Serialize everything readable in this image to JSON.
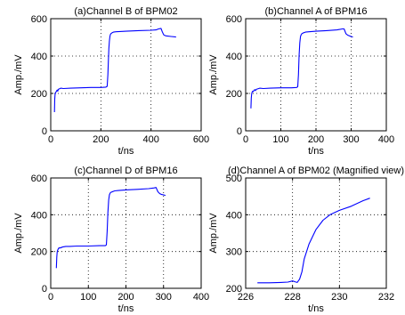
{
  "chart_data": [
    {
      "type": "line",
      "title": "(a)Channel B of BPM02",
      "xlabel": "t/ns",
      "ylabel": "Amp./mV",
      "xlim": [
        0,
        600
      ],
      "ylim": [
        0,
        600
      ],
      "xticks": [
        0,
        200,
        400,
        600
      ],
      "yticks": [
        0,
        200,
        400,
        600
      ],
      "grid": true,
      "series": [
        {
          "color": "#0000ff",
          "x": [
            15,
            16,
            17,
            18,
            20,
            22,
            24,
            26,
            28,
            30,
            35,
            40,
            50,
            80,
            120,
            160,
            200,
            220,
            225,
            228,
            230,
            232,
            234,
            236,
            238,
            240,
            245,
            250,
            260,
            300,
            350,
            400,
            420,
            430,
            440,
            445,
            450,
            455,
            460,
            480,
            500
          ],
          "y": [
            100,
            170,
            190,
            200,
            205,
            210,
            215,
            218,
            212,
            222,
            225,
            228,
            226,
            228,
            230,
            232,
            232,
            234,
            238,
            300,
            380,
            440,
            480,
            505,
            515,
            520,
            525,
            528,
            530,
            533,
            536,
            538,
            540,
            545,
            548,
            530,
            515,
            510,
            508,
            505,
            502
          ]
        }
      ]
    },
    {
      "type": "line",
      "title": "(b)Channel A of BPM16",
      "xlabel": "t/ns",
      "ylabel": "Amp./mV",
      "xlim": [
        0,
        400
      ],
      "ylim": [
        0,
        600
      ],
      "xticks": [
        0,
        100,
        200,
        300,
        400
      ],
      "yticks": [
        0,
        200,
        400,
        600
      ],
      "grid": true,
      "series": [
        {
          "color": "#0000ff",
          "x": [
            15,
            16,
            17,
            18,
            20,
            22,
            24,
            26,
            28,
            30,
            40,
            50,
            70,
            100,
            130,
            145,
            148,
            150,
            152,
            154,
            156,
            158,
            160,
            165,
            170,
            180,
            200,
            230,
            260,
            275,
            280,
            285,
            290,
            295,
            300,
            305
          ],
          "y": [
            120,
            175,
            195,
            205,
            212,
            210,
            218,
            220,
            215,
            222,
            228,
            226,
            228,
            230,
            230,
            232,
            236,
            300,
            400,
            470,
            505,
            515,
            520,
            525,
            528,
            530,
            533,
            536,
            540,
            545,
            545,
            520,
            512,
            508,
            505,
            502
          ]
        }
      ]
    },
    {
      "type": "line",
      "title": "(c)Channel D of BPM16",
      "xlabel": "t/ns",
      "ylabel": "Amp./mV",
      "xlim": [
        0,
        400
      ],
      "ylim": [
        0,
        600
      ],
      "xticks": [
        0,
        100,
        200,
        300,
        400
      ],
      "yticks": [
        0,
        200,
        400,
        600
      ],
      "grid": true,
      "series": [
        {
          "color": "#0000ff",
          "x": [
            15,
            16,
            17,
            18,
            20,
            22,
            24,
            26,
            28,
            30,
            40,
            50,
            70,
            100,
            130,
            145,
            148,
            150,
            152,
            154,
            156,
            158,
            160,
            165,
            170,
            180,
            200,
            230,
            260,
            275,
            280,
            285,
            290,
            295,
            300,
            305
          ],
          "y": [
            110,
            170,
            195,
            205,
            215,
            220,
            218,
            222,
            220,
            224,
            228,
            228,
            230,
            230,
            232,
            232,
            236,
            310,
            410,
            480,
            508,
            518,
            522,
            526,
            530,
            532,
            535,
            538,
            542,
            546,
            548,
            525,
            515,
            510,
            508,
            505
          ]
        }
      ]
    },
    {
      "type": "line",
      "title": "(d)Channel A of BPM02 (Magnified view)",
      "xlabel": "t/ns",
      "ylabel": "Amp./mV",
      "xlim": [
        226,
        232
      ],
      "ylim": [
        200,
        500
      ],
      "xticks": [
        226,
        228,
        230,
        232
      ],
      "yticks": [
        200,
        300,
        400,
        500
      ],
      "grid": true,
      "series": [
        {
          "color": "#0000ff",
          "x": [
            226.5,
            227.0,
            227.5,
            227.8,
            228.0,
            228.1,
            228.2,
            228.3,
            228.4,
            228.5,
            228.7,
            229.0,
            229.3,
            229.6,
            230.0,
            230.5,
            231.0,
            231.3
          ],
          "y": [
            215,
            215,
            216,
            217,
            220,
            218,
            216,
            225,
            245,
            280,
            320,
            360,
            385,
            400,
            412,
            423,
            438,
            445
          ]
        }
      ]
    }
  ]
}
